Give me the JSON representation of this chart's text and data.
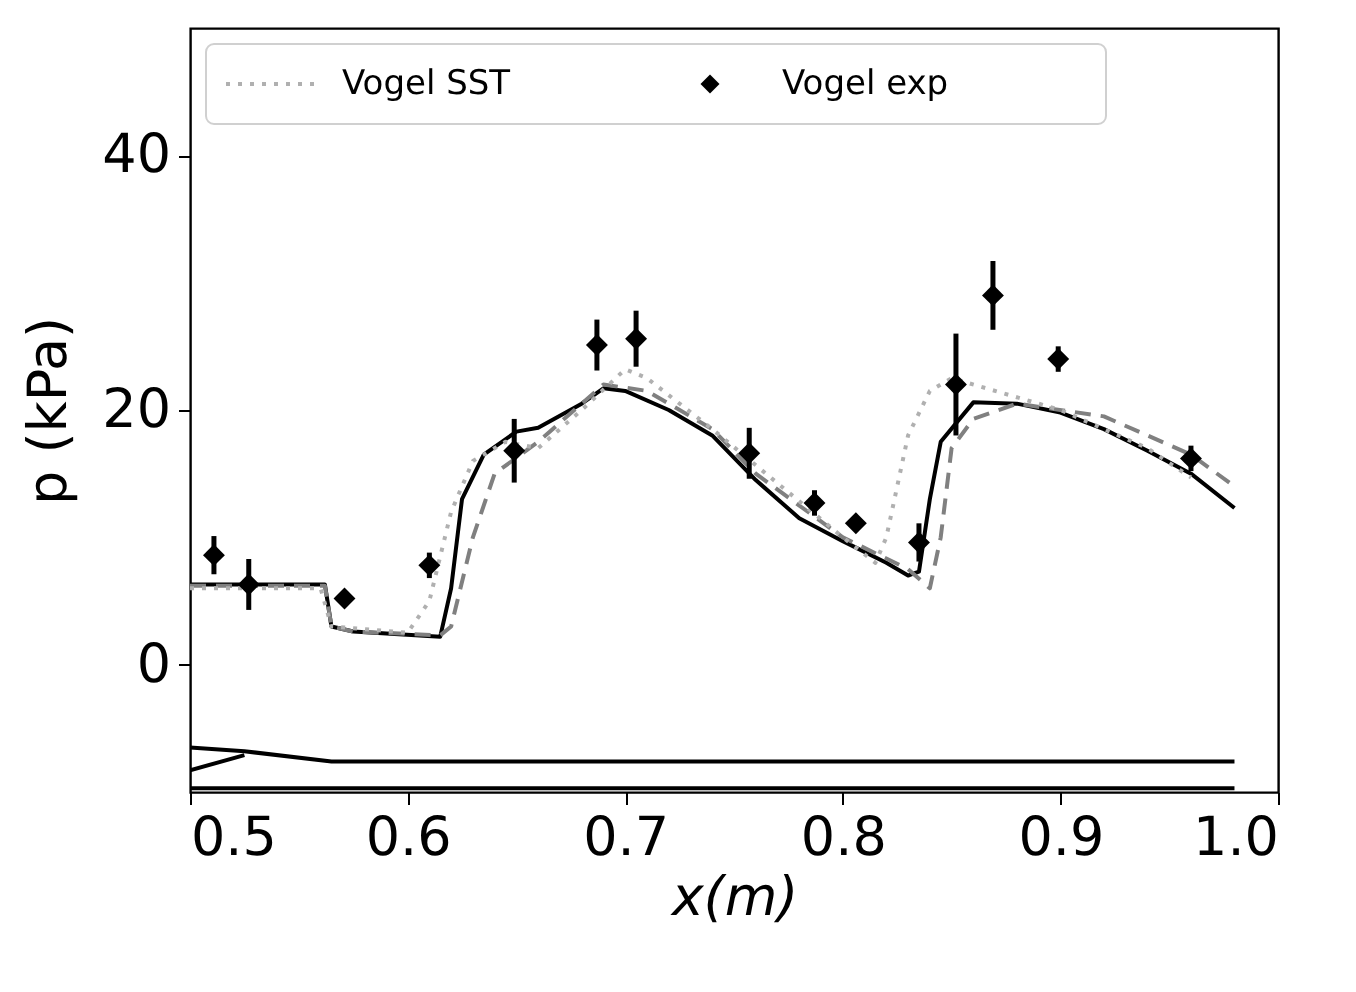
{
  "chart_data": {
    "type": "line",
    "xlabel": "x(m)",
    "ylabel": "p (kPa)",
    "xlim": [
      0.5,
      1.0
    ],
    "xticks": [
      0.5,
      0.6,
      0.7,
      0.8,
      0.9,
      {
        "value": 1.0,
        "label": "1.0"
      }
    ],
    "ylim": [
      -10,
      50
    ],
    "yticks": [
      0,
      20,
      40
    ],
    "legend": "top left",
    "grid": false,
    "series": [
      {
        "color": "#000000",
        "line_style": "solid",
        "x": [
          0.5,
          0.562,
          0.565,
          0.575,
          0.615,
          0.62,
          0.625,
          0.635,
          0.65,
          0.66,
          0.68,
          0.69,
          0.7,
          0.72,
          0.74,
          0.76,
          0.78,
          0.8,
          0.82,
          0.83,
          0.835,
          0.84,
          0.845,
          0.86,
          0.88,
          0.9,
          0.92,
          0.94,
          0.96,
          0.98
        ],
        "values": [
          6.3,
          6.3,
          3.0,
          2.6,
          2.2,
          6,
          13,
          16.5,
          18.3,
          18.6,
          20.5,
          21.7,
          21.5,
          20,
          18,
          14.5,
          11.5,
          9.7,
          8,
          7,
          7.3,
          13,
          17.5,
          20.6,
          20.5,
          19.8,
          18.5,
          16.8,
          15,
          12.3
        ]
      },
      {
        "color": "#808080",
        "line_style": "dashed",
        "x": [
          0.5,
          0.562,
          0.565,
          0.575,
          0.615,
          0.62,
          0.63,
          0.64,
          0.66,
          0.69,
          0.71,
          0.74,
          0.76,
          0.8,
          0.83,
          0.84,
          0.845,
          0.85,
          0.86,
          0.88,
          0.92,
          0.96,
          0.98
        ],
        "values": [
          6.2,
          6.2,
          3.0,
          2.6,
          2.3,
          3,
          10,
          15,
          17.5,
          22,
          21.5,
          18.5,
          15,
          10,
          7.5,
          6,
          10,
          17,
          19.3,
          20.5,
          19.5,
          16.5,
          14
        ]
      },
      {
        "name": "Vogel SST",
        "color": "#b0b0b0",
        "line_style": "dotted",
        "x": [
          0.5,
          0.56,
          0.565,
          0.6,
          0.61,
          0.62,
          0.63,
          0.645,
          0.66,
          0.68,
          0.7,
          0.71,
          0.74,
          0.8,
          0.815,
          0.82,
          0.83,
          0.84,
          0.85,
          0.9,
          0.94,
          0.96
        ],
        "values": [
          6.0,
          6.0,
          3,
          2.5,
          5,
          12,
          16,
          17.5,
          17,
          20,
          23.2,
          22.5,
          18.5,
          10,
          8,
          10,
          18,
          21.5,
          22.5,
          20,
          17,
          14.7
        ]
      },
      {
        "name": "Vogel exp",
        "type": "scatter",
        "marker": "diamond",
        "color": "#000000",
        "x": [
          0.511,
          0.527,
          0.571,
          0.61,
          0.649,
          0.687,
          0.705,
          0.757,
          0.787,
          0.806,
          0.835,
          0.852,
          0.869,
          0.899,
          0.96
        ],
        "values": [
          8.6,
          6.3,
          5.2,
          7.8,
          16.8,
          25.1,
          25.6,
          16.6,
          12.7,
          11.1,
          9.6,
          22,
          29,
          24,
          16.2
        ],
        "errors": [
          1.5,
          2,
          null,
          1,
          2.5,
          2,
          2.2,
          2,
          1,
          null,
          1.5,
          4,
          2.7,
          1,
          1
        ]
      },
      {
        "color": "#000000",
        "line_style": "solid",
        "x": [
          0.5,
          0.525,
          0.565,
          0.98
        ],
        "values": [
          -6.5,
          -6.8,
          -7.6,
          -7.6
        ]
      },
      {
        "color": "#000000",
        "line_style": "solid",
        "x": [
          0.5,
          0.525
        ],
        "values": [
          -8.3,
          -7.1
        ]
      },
      {
        "color": "#000000",
        "line_style": "solid",
        "x": [
          0.5,
          0.98
        ],
        "values": [
          -9.7,
          -9.7
        ]
      }
    ]
  }
}
